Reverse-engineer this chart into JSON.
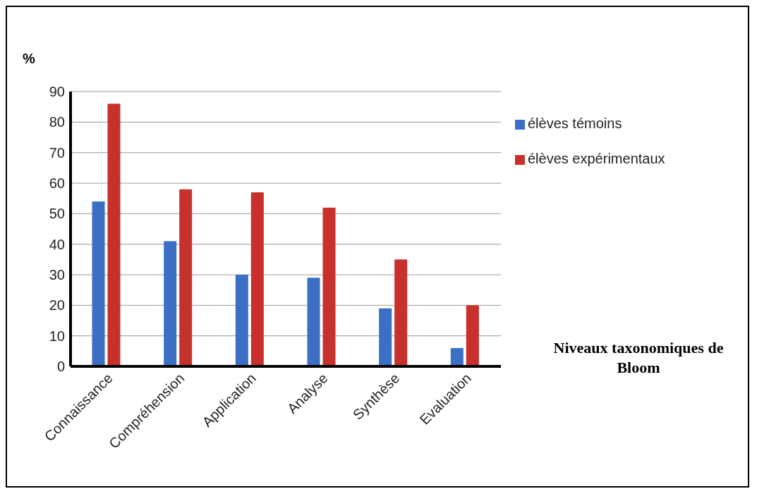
{
  "chart_data": {
    "type": "bar",
    "ylabel": "%",
    "xlabel": "Niveaux taxonomiques de Bloom",
    "categories": [
      "Connaissance",
      "Compréhension",
      "Application",
      "Analyse",
      "Synthèse",
      "Evaluation"
    ],
    "series": [
      {
        "name": "élèves témoins",
        "color": "#3a6fc4",
        "values": [
          54,
          41,
          30,
          29,
          19,
          6
        ]
      },
      {
        "name": "élèves expérimentaux",
        "color": "#c8302c",
        "values": [
          86,
          58,
          57,
          52,
          35,
          20
        ]
      }
    ],
    "ylim": [
      0,
      90
    ],
    "yticks": [
      0,
      10,
      20,
      30,
      40,
      50,
      60,
      70,
      80,
      90
    ],
    "grid": "y",
    "legend": "right"
  }
}
